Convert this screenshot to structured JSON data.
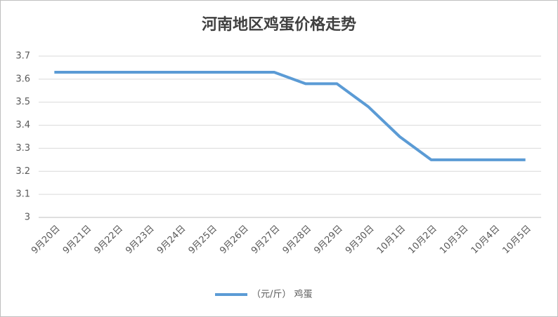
{
  "chart_data": {
    "type": "line",
    "title": "河南地区鸡蛋价格走势",
    "categories": [
      "9月20日",
      "9月21日",
      "9月22日",
      "9月23日",
      "9月24日",
      "9月25日",
      "9月26日",
      "9月27日",
      "9月28日",
      "9月29日",
      "9月30日",
      "10月1日",
      "10月2日",
      "10月3日",
      "10月4日",
      "10月5日"
    ],
    "series": [
      {
        "name": "（元/斤） 鸡蛋",
        "color": "#5b9bd5",
        "values": [
          3.63,
          3.63,
          3.63,
          3.63,
          3.63,
          3.63,
          3.63,
          3.63,
          3.58,
          3.58,
          3.48,
          3.35,
          3.25,
          3.25,
          3.25,
          3.25
        ]
      }
    ],
    "ylim": [
      3,
      3.7
    ],
    "yticks": [
      3,
      3.1,
      3.2,
      3.3,
      3.4,
      3.5,
      3.6,
      3.7
    ],
    "grid": true,
    "legend": "bottom"
  }
}
